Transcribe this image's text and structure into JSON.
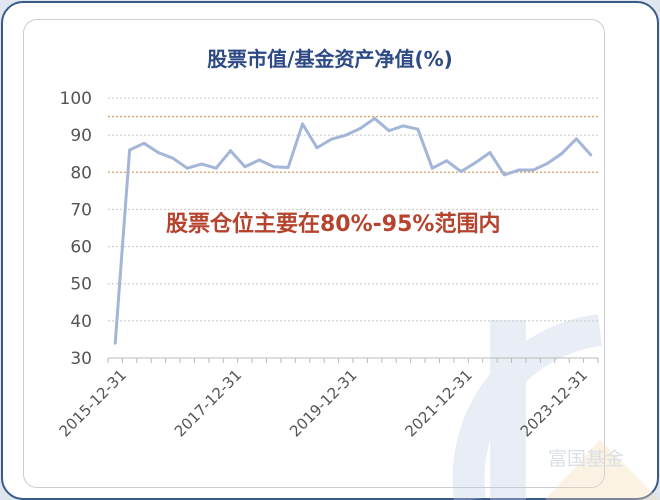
{
  "chart_data": {
    "type": "line",
    "title": "股票市值/基金资产净值(%)",
    "annotation": "股票仓位主要在80%-95%范围内",
    "x": [
      "2015-12-31",
      "2016-03-31",
      "2016-06-30",
      "2016-09-30",
      "2016-12-31",
      "2017-03-31",
      "2017-06-30",
      "2017-09-30",
      "2017-12-31",
      "2018-03-31",
      "2018-06-30",
      "2018-09-30",
      "2018-12-31",
      "2019-03-31",
      "2019-06-30",
      "2019-09-30",
      "2019-12-31",
      "2020-03-31",
      "2020-06-30",
      "2020-09-30",
      "2020-12-31",
      "2021-03-31",
      "2021-06-30",
      "2021-09-30",
      "2021-12-31",
      "2022-03-31",
      "2022-06-30",
      "2022-09-30",
      "2022-12-31",
      "2023-03-31",
      "2023-06-30",
      "2023-09-30",
      "2023-12-31",
      "2024-03-31"
    ],
    "x_tick_labels": [
      "2015-12-31",
      "2017-12-31",
      "2019-12-31",
      "2021-12-31",
      "2023-12-31"
    ],
    "series": [
      {
        "values": [
          34.0,
          86.0,
          87.8,
          85.3,
          83.8,
          81.1,
          82.2,
          81.1,
          85.8,
          81.5,
          83.3,
          81.5,
          81.3,
          93.0,
          86.6,
          88.9,
          90.0,
          91.8,
          94.5,
          91.2,
          92.5,
          91.6,
          81.1,
          83.1,
          80.2,
          82.6,
          85.3,
          79.3,
          80.6,
          80.6,
          82.4,
          85.1,
          89.0,
          84.7
        ],
        "color": "#a3b6d8"
      }
    ],
    "ylim": [
      30,
      100
    ],
    "y_ticks": [
      "30",
      "40",
      "50",
      "60",
      "70",
      "80",
      "90",
      "100"
    ],
    "reference_lines": [
      80,
      95
    ],
    "reference_color": "#d9a46a",
    "grid": true,
    "annotation_color": "#b5432e",
    "title_color": "#2d4a86"
  },
  "watermark": {
    "text": "富国基金"
  }
}
